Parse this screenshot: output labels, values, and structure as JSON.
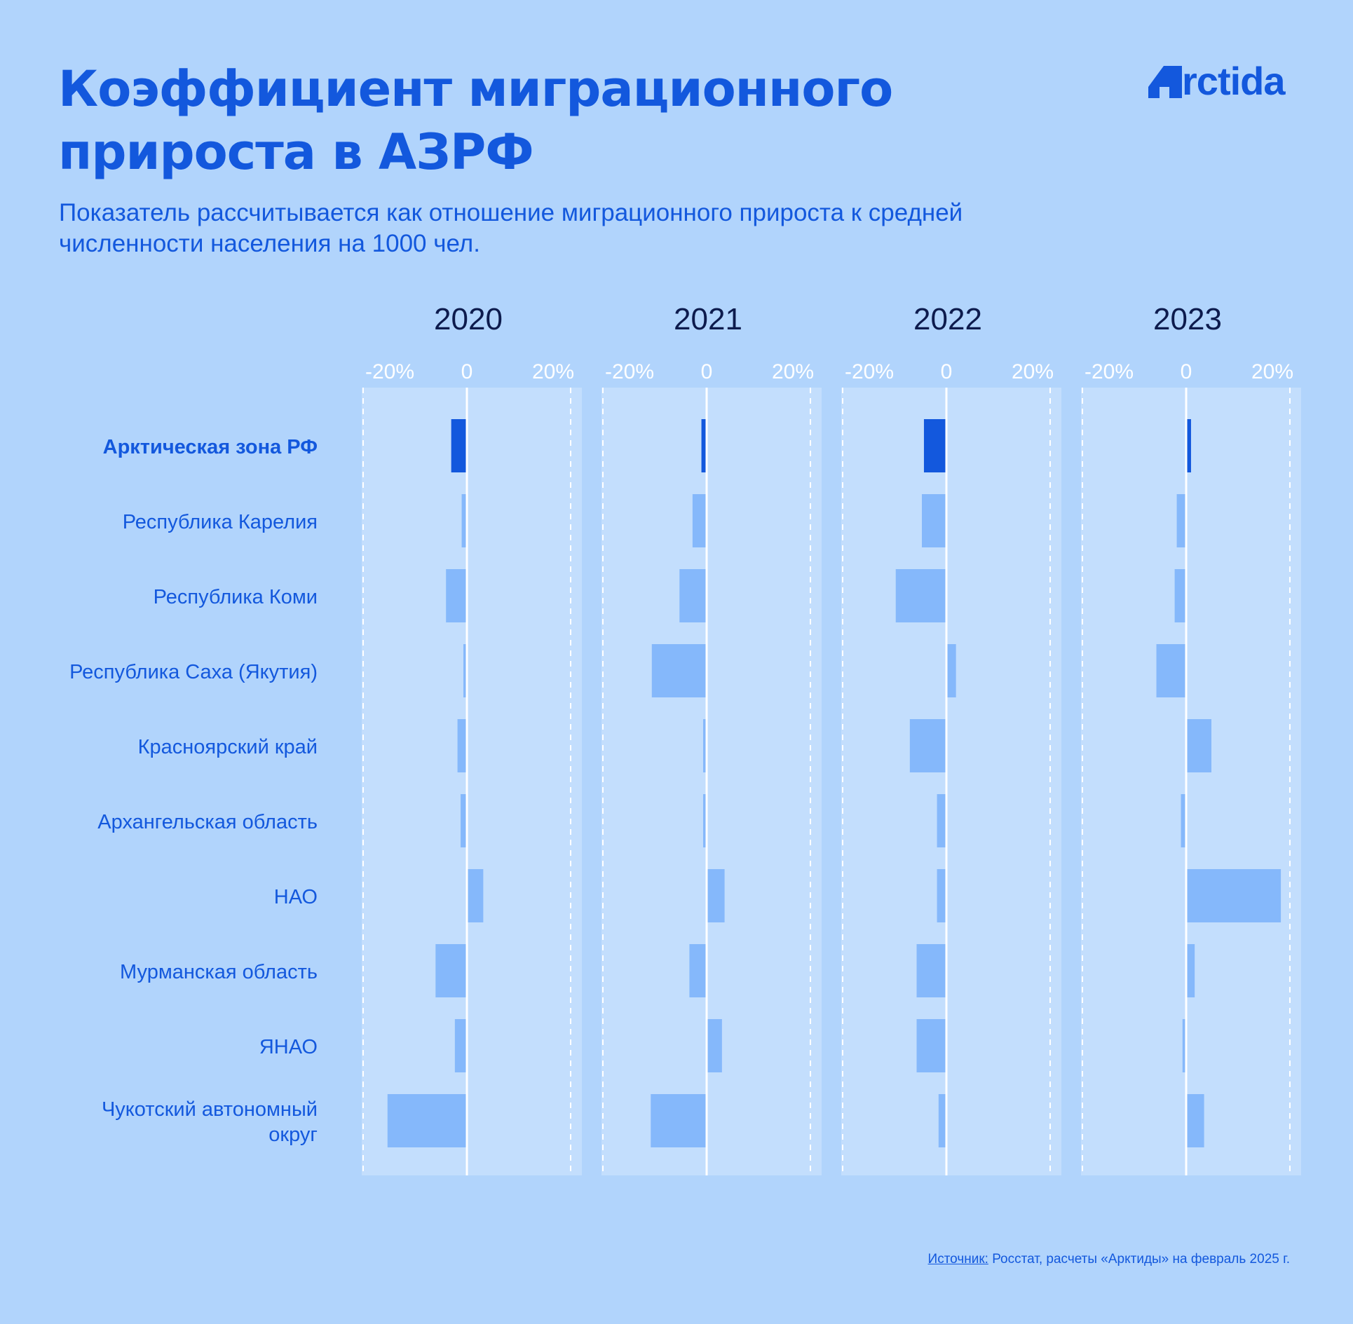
{
  "title": "Коэффициент миграционного прироста в АЗРФ",
  "subtitle": "Показатель рассчитывается как отношение миграционного прироста к средней численности населения на 1000 чел.",
  "logo": {
    "text": "rctida",
    "mark_icon": "arctida-a-icon"
  },
  "source": {
    "label": "Источник:",
    "text": " Росстат, расчеты «Арктиды» на февраль 2025 г."
  },
  "colors": {
    "background": "#b1d4fc",
    "panel": "#c3defd",
    "bar": "#85b8fb",
    "highlight_bar": "#1358dd",
    "year_label": "#0d1b4d",
    "tick_label": "#ffffff"
  },
  "chart_data": {
    "type": "bar",
    "orientation": "horizontal",
    "categories": [
      "Арктическая зона РФ",
      "Республика Карелия",
      "Республика Коми",
      "Республика Саха (Якутия)",
      "Красноярский край",
      "Архангельская область",
      "НАО",
      "Мурманская область",
      "ЯНАО",
      "Чукотский автономный округ"
    ],
    "highlight_category": "Арктическая зона РФ",
    "xlim": [
      -20,
      20
    ],
    "tick_labels": [
      "-20%",
      "0",
      "20%"
    ],
    "grid": true,
    "series": [
      {
        "name": "2020",
        "values": [
          -3.0,
          -1.0,
          -4.0,
          -0.5,
          -1.8,
          -1.2,
          3.0,
          -6.0,
          -2.3,
          -15.2
        ]
      },
      {
        "name": "2021",
        "values": [
          -1.0,
          -2.7,
          -5.2,
          -10.5,
          -0.5,
          -0.3,
          3.3,
          -3.3,
          2.8,
          -10.7
        ]
      },
      {
        "name": "2022",
        "values": [
          -4.3,
          -4.7,
          -9.7,
          1.7,
          -7.0,
          -1.8,
          -1.8,
          -5.7,
          -5.7,
          -1.5
        ]
      },
      {
        "name": "2023",
        "values": [
          0.8,
          -1.8,
          -2.2,
          -5.7,
          4.7,
          -1.0,
          18.0,
          1.5,
          -0.7,
          3.3
        ]
      }
    ]
  }
}
